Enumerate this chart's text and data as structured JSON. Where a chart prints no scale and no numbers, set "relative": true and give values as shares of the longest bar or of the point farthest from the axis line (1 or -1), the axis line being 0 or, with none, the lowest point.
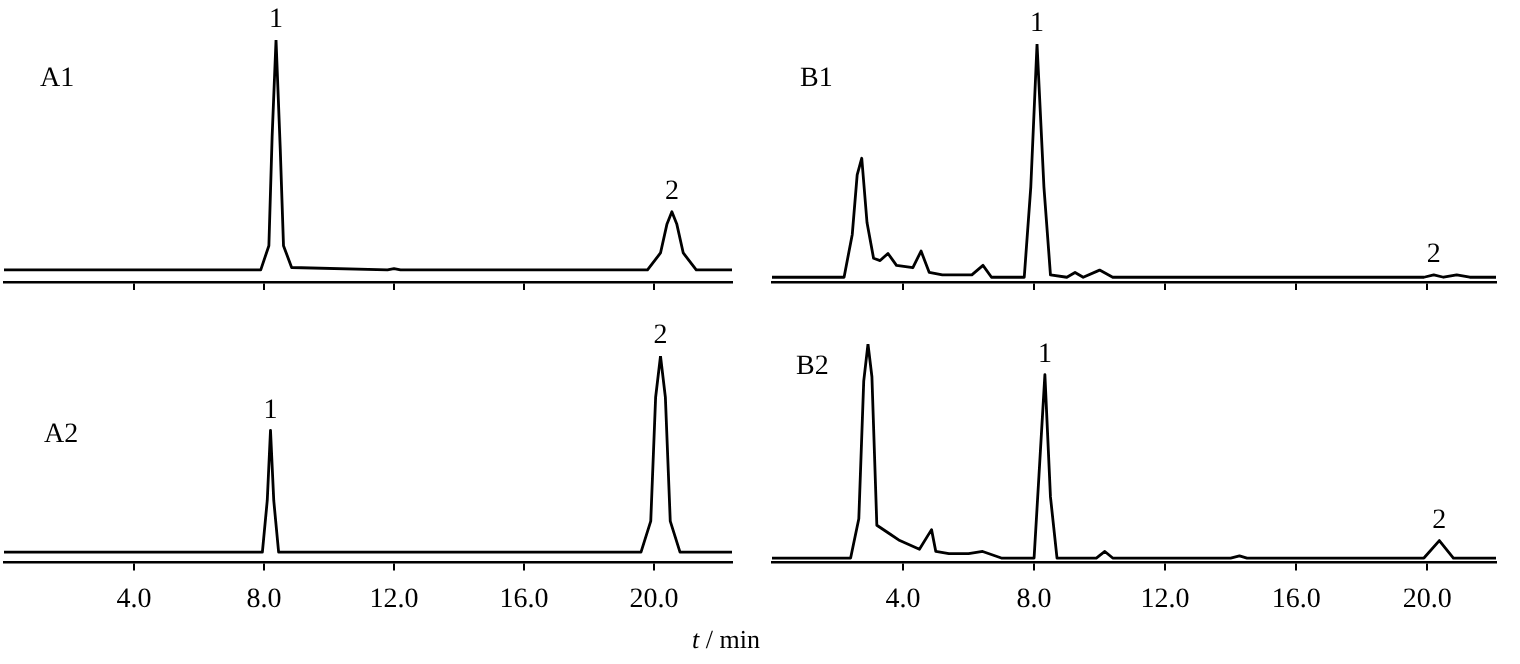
{
  "chart_data": [
    {
      "type": "line",
      "relative": true,
      "xlim": [
        0,
        22.4
      ],
      "xticks": [
        {
          "value": 4,
          "label": null
        },
        {
          "value": 8,
          "label": null
        },
        {
          "value": 12,
          "label": null
        },
        {
          "value": 16,
          "label": null
        },
        {
          "value": 20,
          "label": null
        }
      ],
      "tick_labels": false,
      "marker": "none",
      "series": [
        {
          "color": "#000000",
          "x": [
            0,
            7.9,
            8.15,
            8.25,
            8.37,
            8.5,
            8.6,
            8.85,
            11.8,
            12.0,
            12.2,
            19.8,
            20.2,
            20.4,
            20.55,
            20.7,
            20.9,
            21.3,
            22.4
          ],
          "values": [
            0.05,
            0.05,
            0.15,
            0.6,
            1,
            0.55,
            0.15,
            0.06,
            0.05,
            0.055,
            0.05,
            0.05,
            0.12,
            0.24,
            0.29,
            0.24,
            0.12,
            0.05,
            0.05
          ]
        }
      ],
      "annotations": [
        "A1",
        {
          "text": "1",
          "x": 8.37,
          "y": 1
        },
        {
          "text": "2",
          "x": 20.55,
          "y": 0.29
        }
      ]
    },
    {
      "type": "line",
      "relative": true,
      "xlim": [
        0,
        22.4
      ],
      "xticks": [
        {
          "value": 4,
          "label": "4.0"
        },
        {
          "value": 8,
          "label": "8.0"
        },
        {
          "value": 12,
          "label": "12.0"
        },
        {
          "value": 16,
          "label": "16.0"
        },
        {
          "value": 20,
          "label": "20.0"
        }
      ],
      "tick_labels": "x",
      "marker": "none",
      "xlabel": "t / min",
      "series": [
        {
          "color": "#000000",
          "x": [
            0,
            7.95,
            8.1,
            8.2,
            8.3,
            8.45,
            19.6,
            19.9,
            20.05,
            20.2,
            20.35,
            20.5,
            20.8,
            22.4
          ],
          "values": [
            0.05,
            0.05,
            0.3,
            0.64,
            0.3,
            0.05,
            0.05,
            0.2,
            0.8,
            1,
            0.8,
            0.2,
            0.05,
            0.05
          ]
        }
      ],
      "annotations": [
        "A2",
        {
          "text": "1",
          "x": 8.2,
          "y": 0.64
        },
        {
          "text": "2",
          "x": 20.2,
          "y": 1
        }
      ]
    },
    {
      "type": "line",
      "relative": true,
      "xlim": [
        0,
        22.1
      ],
      "xticks": [
        {
          "value": 4,
          "label": null
        },
        {
          "value": 8,
          "label": null
        },
        {
          "value": 12,
          "label": null
        },
        {
          "value": 16,
          "label": null
        },
        {
          "value": 20,
          "label": null
        }
      ],
      "tick_labels": false,
      "marker": "none",
      "series": [
        {
          "color": "#000000",
          "x": [
            0,
            2.2,
            2.45,
            2.6,
            2.74,
            2.9,
            3.1,
            3.3,
            3.54,
            3.8,
            4.3,
            4.55,
            4.8,
            5.2,
            6.1,
            6.44,
            6.7,
            7.7,
            7.9,
            8.09,
            8.3,
            8.5,
            9.0,
            9.25,
            9.5,
            10.0,
            10.4,
            19.9,
            20.2,
            20.5,
            20.9,
            21.3,
            22.1
          ],
          "values": [
            0.02,
            0.02,
            0.2,
            0.45,
            0.52,
            0.25,
            0.1,
            0.09,
            0.12,
            0.07,
            0.06,
            0.13,
            0.04,
            0.03,
            0.03,
            0.07,
            0.02,
            0.02,
            0.4,
            1,
            0.4,
            0.03,
            0.02,
            0.04,
            0.02,
            0.05,
            0.02,
            0.02,
            0.03,
            0.02,
            0.03,
            0.02,
            0.02
          ]
        }
      ],
      "annotations": [
        "B1",
        {
          "text": "1",
          "x": 8.09,
          "y": 1
        },
        {
          "text": "2",
          "x": 20.2,
          "y": 0.03
        }
      ]
    },
    {
      "type": "line",
      "relative": true,
      "xlim": [
        0,
        22.1
      ],
      "xticks": [
        {
          "value": 4,
          "label": "4.0"
        },
        {
          "value": 8,
          "label": "8.0"
        },
        {
          "value": 12,
          "label": "12.0"
        },
        {
          "value": 16,
          "label": "16.0"
        },
        {
          "value": 20,
          "label": "20.0"
        }
      ],
      "tick_labels": "x",
      "marker": "none",
      "series": [
        {
          "color": "#000000",
          "x": [
            0,
            2.4,
            2.65,
            2.8,
            2.93,
            3.05,
            3.2,
            3.6,
            3.9,
            4.5,
            4.87,
            5.0,
            5.4,
            6.0,
            6.43,
            7.0,
            8.0,
            8.15,
            8.33,
            8.5,
            8.7,
            9.9,
            10.16,
            10.4,
            14.0,
            14.27,
            14.5,
            19.9,
            20.37,
            20.8,
            22.1
          ],
          "values": [
            0.02,
            0.02,
            0.2,
            0.83,
            1,
            0.85,
            0.17,
            0.13,
            0.1,
            0.06,
            0.15,
            0.05,
            0.04,
            0.04,
            0.05,
            0.02,
            0.02,
            0.4,
            0.86,
            0.3,
            0.02,
            0.02,
            0.05,
            0.02,
            0.02,
            0.03,
            0.02,
            0.02,
            0.1,
            0.02,
            0.02
          ]
        }
      ],
      "annotations": [
        "B2",
        {
          "text": "1",
          "x": 8.33,
          "y": 0.86
        },
        {
          "text": "2",
          "x": 20.37,
          "y": 0.1
        }
      ]
    }
  ]
}
